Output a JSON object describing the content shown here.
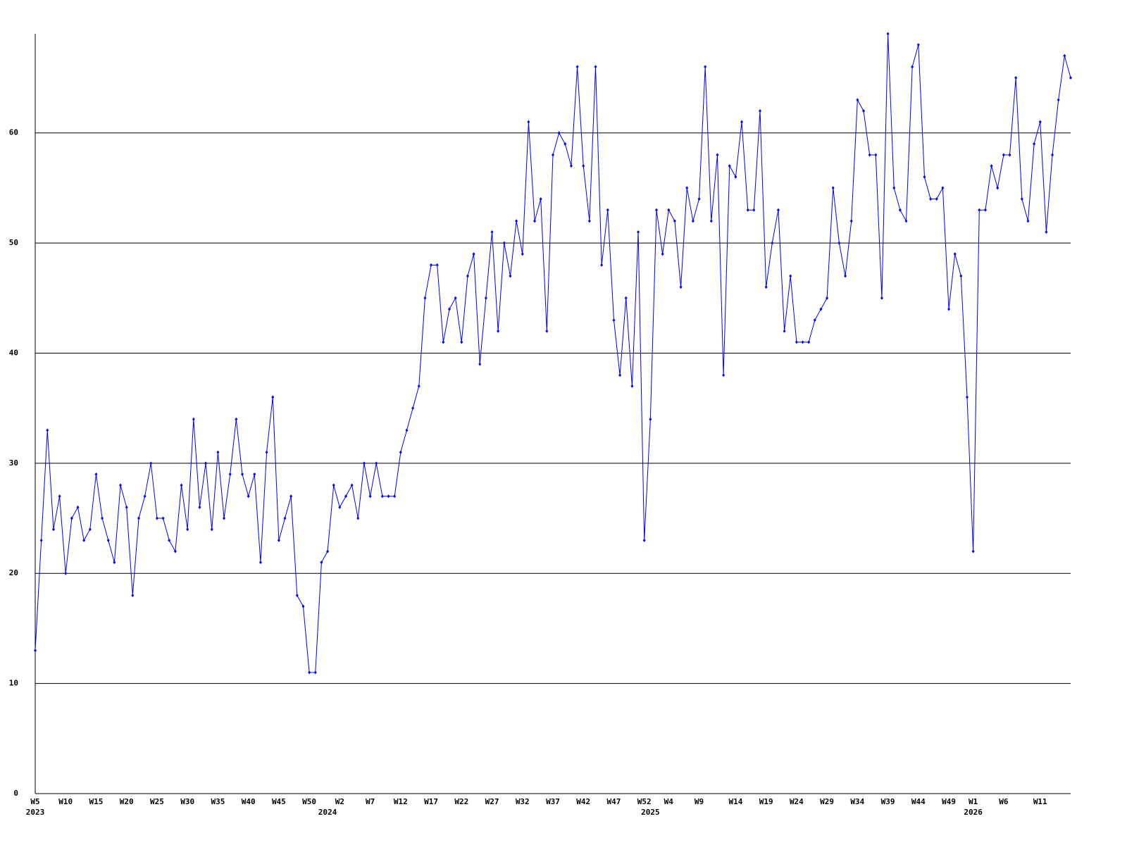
{
  "chart_data": {
    "type": "line",
    "categories": [
      "W5",
      null,
      null,
      null,
      null,
      "W10",
      null,
      null,
      null,
      null,
      "W15",
      null,
      null,
      null,
      null,
      "W20",
      null,
      null,
      null,
      null,
      "W25",
      null,
      null,
      null,
      null,
      "W30",
      null,
      null,
      null,
      null,
      "W35",
      null,
      null,
      null,
      null,
      "W40",
      null,
      null,
      null,
      null,
      "W45",
      null,
      null,
      null,
      null,
      "W50",
      null,
      null,
      null,
      null,
      "W2",
      null,
      null,
      null,
      null,
      "W7",
      null,
      null,
      null,
      null,
      "W12",
      null,
      null,
      null,
      null,
      "W17",
      null,
      null,
      null,
      null,
      "W22",
      null,
      null,
      null,
      null,
      "W27",
      null,
      null,
      null,
      null,
      "W32",
      null,
      null,
      null,
      null,
      "W37",
      null,
      null,
      null,
      null,
      "W42",
      null,
      null,
      null,
      null,
      "W47",
      null,
      null,
      null,
      null,
      "W52",
      null,
      null,
      null,
      "W4",
      null,
      null,
      null,
      null,
      "W9",
      null,
      null,
      null,
      null,
      null,
      "W14",
      null,
      null,
      null,
      null,
      "W19",
      null,
      null,
      null,
      null,
      "W24",
      null,
      null,
      null,
      null,
      "W29",
      null,
      null,
      null,
      null,
      "W34",
      null,
      null,
      null,
      null,
      "W39",
      null,
      null,
      null,
      null,
      "W44",
      null,
      null,
      null,
      null,
      "W49",
      null,
      null,
      null,
      "W1",
      null,
      null,
      null,
      null,
      "W6",
      null,
      null,
      null,
      null,
      null,
      "W11",
      null,
      null,
      null,
      null,
      null
    ],
    "category_years": [
      "2023",
      null,
      null,
      null,
      null,
      null,
      null,
      null,
      null,
      null,
      null,
      null,
      null,
      null,
      null,
      null,
      null,
      null,
      null,
      null,
      null,
      null,
      null,
      null,
      null,
      null,
      null,
      null,
      null,
      null,
      null,
      null,
      null,
      null,
      null,
      null,
      null,
      null,
      null,
      null,
      null,
      null,
      null,
      null,
      null,
      null,
      null,
      null,
      "2024",
      null,
      null,
      null,
      null,
      null,
      null,
      null,
      null,
      null,
      null,
      null,
      null,
      null,
      null,
      null,
      null,
      null,
      null,
      null,
      null,
      null,
      null,
      null,
      null,
      null,
      null,
      null,
      null,
      null,
      null,
      null,
      null,
      null,
      null,
      null,
      null,
      null,
      null,
      null,
      null,
      null,
      null,
      null,
      null,
      null,
      null,
      null,
      null,
      null,
      null,
      null,
      null,
      "2025",
      null,
      null,
      null,
      null,
      null,
      null,
      null,
      null,
      null,
      null,
      null,
      null,
      null,
      null,
      null,
      null,
      null,
      null,
      null,
      null,
      null,
      null,
      null,
      null,
      null,
      null,
      null,
      null,
      null,
      null,
      null,
      null,
      null,
      null,
      null,
      null,
      null,
      null,
      null,
      null,
      null,
      null,
      null,
      null,
      null,
      null,
      null,
      null,
      null,
      null,
      null,
      null,
      "2026",
      null,
      null,
      null,
      null,
      null,
      null,
      null,
      null,
      null,
      null,
      null,
      null,
      null,
      null,
      null,
      null
    ],
    "values": [
      13,
      23,
      33,
      24,
      27,
      20,
      25,
      26,
      23,
      24,
      29,
      25,
      23,
      21,
      28,
      26,
      18,
      25,
      27,
      30,
      25,
      25,
      23,
      22,
      28,
      24,
      34,
      26,
      30,
      24,
      31,
      25,
      29,
      34,
      29,
      27,
      29,
      21,
      31,
      36,
      23,
      25,
      27,
      18,
      17,
      11,
      11,
      21,
      22,
      28,
      26,
      27,
      28,
      25,
      30,
      27,
      30,
      27,
      27,
      27,
      31,
      33,
      35,
      37,
      45,
      48,
      48,
      41,
      44,
      45,
      41,
      47,
      49,
      39,
      45,
      51,
      42,
      50,
      47,
      52,
      49,
      61,
      52,
      54,
      42,
      58,
      60,
      59,
      57,
      66,
      57,
      52,
      66,
      48,
      53,
      43,
      38,
      45,
      37,
      51,
      23,
      34,
      53,
      49,
      53,
      52,
      46,
      55,
      52,
      54,
      66,
      52,
      58,
      38,
      57,
      56,
      61,
      53,
      53,
      62,
      46,
      50,
      53,
      42,
      47,
      41,
      41,
      41,
      43,
      44,
      45,
      55,
      50,
      47,
      52,
      63,
      62,
      58,
      58,
      45,
      69,
      55,
      53,
      52,
      66,
      68,
      56,
      54,
      54,
      55,
      44,
      49,
      47,
      36,
      22,
      53,
      53,
      57,
      55,
      58,
      58,
      65,
      54,
      52,
      59,
      61,
      51,
      58,
      63,
      67,
      65
    ],
    "color": "#0000ff",
    "ylim": [
      0,
      69
    ],
    "yticks": [
      0,
      10,
      20,
      30,
      40,
      50,
      60
    ],
    "grid": true
  }
}
